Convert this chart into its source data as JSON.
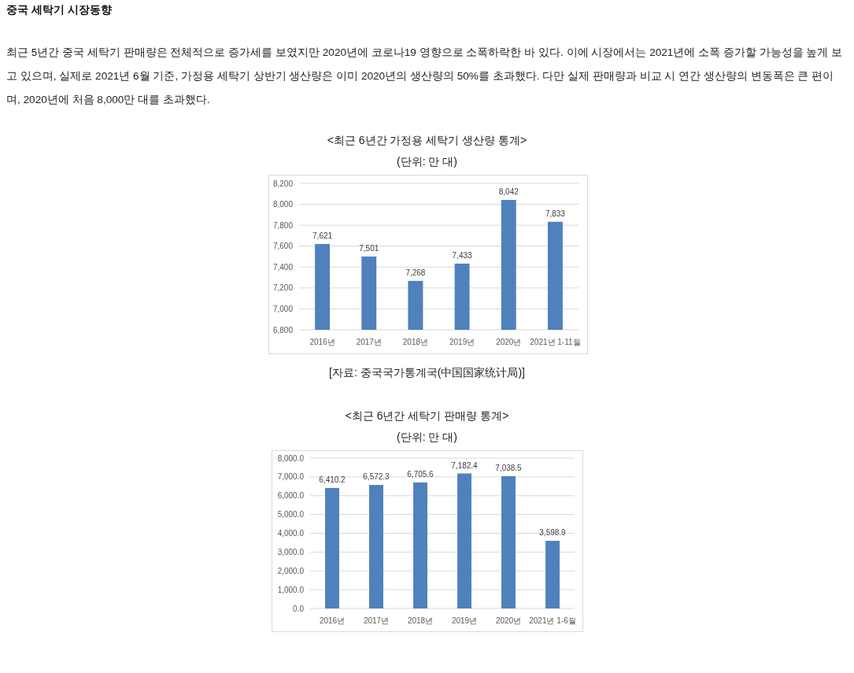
{
  "chart_data": [
    {
      "type": "other",
      "title": "중국 세탁기 시장동향",
      "annotations": [
        "최근 5년간 중국 세탁기 판매량은 전체적으로 증가세를 보였지만 2020년에 코로나19 영향으로 소폭하락한 바 있다. 이에 시장에서는 2021년에 소폭 증가할 가능성을 높게 보고 있으며, 실제로 2021년 6월 기준, 가정용 세탁기 상반기 생산량은 이미 2020년의 생산량의 50%를 초과했다. 다만 실제 판매량과 비교 시 연간 생산량의 변동폭은 큰 편이며, 2020년에 처음 8,000만 대를 초과했다."
      ]
    },
    {
      "type": "bar",
      "title": "<최근 6년간 가정용 세탁기 생산량 통계>",
      "subtitle": "(단위: 만 대)",
      "categories": [
        "2016년",
        "2017년",
        "2018년",
        "2019년",
        "2020년",
        "2021년 1-11월"
      ],
      "values": [
        7621,
        7501,
        7268,
        7433,
        8042,
        7833
      ],
      "value_labels": [
        "7,621",
        "7,501",
        "7,268",
        "7,433",
        "8,042",
        "7,833"
      ],
      "color": "#4f81bd",
      "ylim": [
        6800,
        8200
      ],
      "yticks": [
        {
          "value": 6800,
          "label": "6,800"
        },
        {
          "value": 7000,
          "label": "7,000"
        },
        {
          "value": 7200,
          "label": "7,200"
        },
        {
          "value": 7400,
          "label": "7,400"
        },
        {
          "value": 7600,
          "label": "7,600"
        },
        {
          "value": 7800,
          "label": "7,800"
        },
        {
          "value": 8000,
          "label": "8,000"
        },
        {
          "value": 8200,
          "label": "8,200"
        }
      ],
      "grid": "y",
      "annotations": [
        "[자료: 중국국가통계국(中国国家统计局)]"
      ]
    },
    {
      "type": "bar",
      "title": "<최근 6년간 세탁기 판매량 통계>",
      "subtitle": "(단위: 만 대)",
      "categories": [
        "2016년",
        "2017년",
        "2018년",
        "2019년",
        "2020년",
        "2021년 1-6월"
      ],
      "values": [
        6410.2,
        6572.3,
        6705.6,
        7182.4,
        7038.5,
        3598.9
      ],
      "value_labels": [
        "6,410.2",
        "6,572.3",
        "6,705.6",
        "7,182.4",
        "7,038.5",
        "3,598.9"
      ],
      "color": "#4f81bd",
      "ylim": [
        0,
        8000
      ],
      "yticks": [
        {
          "value": 0,
          "label": "0.0"
        },
        {
          "value": 1000,
          "label": "1,000.0"
        },
        {
          "value": 2000,
          "label": "2,000.0"
        },
        {
          "value": 3000,
          "label": "3,000.0"
        },
        {
          "value": 4000,
          "label": "4,000.0"
        },
        {
          "value": 5000,
          "label": "5,000.0"
        },
        {
          "value": 6000,
          "label": "6,000.0"
        },
        {
          "value": 7000,
          "label": "7,000.0"
        },
        {
          "value": 8000,
          "label": "8,000.0"
        }
      ],
      "grid": "y"
    }
  ]
}
